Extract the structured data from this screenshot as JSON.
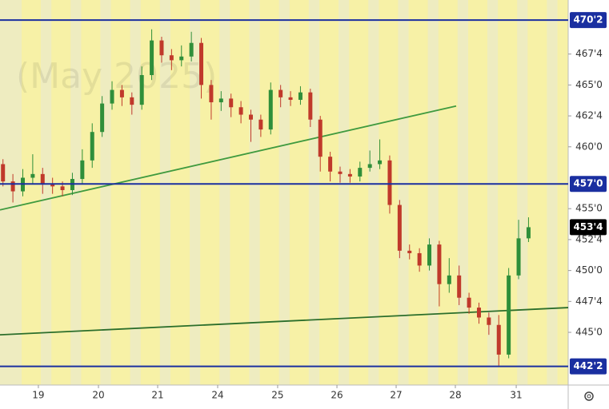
{
  "chart_data": {
    "type": "candlestick",
    "watermark": "(May 2025)",
    "x": [
      0,
      1,
      2,
      3,
      4,
      5,
      6,
      7,
      8,
      9,
      10,
      11,
      12,
      13,
      14,
      15,
      16,
      17,
      18,
      19,
      20,
      21,
      22,
      23,
      24,
      25,
      26,
      27,
      28,
      29,
      30,
      31,
      32,
      33,
      34,
      35,
      36,
      37,
      38,
      39,
      40,
      41,
      42,
      43,
      44,
      45,
      46,
      47,
      48,
      49,
      50,
      51,
      52,
      53
    ],
    "open": [
      458.6,
      457.2,
      456.4,
      457.5,
      457.8,
      457.0,
      456.8,
      456.5,
      457.4,
      458.9,
      461.2,
      463.5,
      464.6,
      464.0,
      463.4,
      465.8,
      468.6,
      467.4,
      467.0,
      467.3,
      468.4,
      465.0,
      463.6,
      463.9,
      463.2,
      462.6,
      462.2,
      461.4,
      464.6,
      464.0,
      463.8,
      464.4,
      462.2,
      459.2,
      458.0,
      457.8,
      457.6,
      458.3,
      458.6,
      458.9,
      455.3,
      451.6,
      451.4,
      450.4,
      452.1,
      448.9,
      449.6,
      447.8,
      447.0,
      446.2,
      445.6,
      443.2,
      449.6,
      452.6
    ],
    "high": [
      459.0,
      457.8,
      458.2,
      459.4,
      458.3,
      457.5,
      457.2,
      457.9,
      459.8,
      461.9,
      464.1,
      465.3,
      465.0,
      464.4,
      466.5,
      469.5,
      468.9,
      467.9,
      468.2,
      469.3,
      468.8,
      465.4,
      464.5,
      464.3,
      463.7,
      463.0,
      462.6,
      465.2,
      465.0,
      464.5,
      464.9,
      464.7,
      462.5,
      459.6,
      458.4,
      458.2,
      458.8,
      459.7,
      460.6,
      459.3,
      455.7,
      452.1,
      451.8,
      452.6,
      452.4,
      451.0,
      450.4,
      448.2,
      447.4,
      446.6,
      446.4,
      450.2,
      454.1,
      454.3
    ],
    "low": [
      456.8,
      455.5,
      456.0,
      457.0,
      456.2,
      456.2,
      456.0,
      456.1,
      457.0,
      458.3,
      460.8,
      463.0,
      463.3,
      462.6,
      463.0,
      465.4,
      466.8,
      466.2,
      466.5,
      466.9,
      463.9,
      462.2,
      462.9,
      462.4,
      461.9,
      460.4,
      460.8,
      461.0,
      463.2,
      463.3,
      463.4,
      461.6,
      458.0,
      457.2,
      457.1,
      457.1,
      457.2,
      458.0,
      458.2,
      454.6,
      451.0,
      450.9,
      449.9,
      450.0,
      447.1,
      448.2,
      447.2,
      446.5,
      445.7,
      444.8,
      442.3,
      442.9,
      449.3,
      452.3
    ],
    "close": [
      457.2,
      456.4,
      457.5,
      457.8,
      457.0,
      456.8,
      456.5,
      457.4,
      458.9,
      461.2,
      463.5,
      464.6,
      464.0,
      463.4,
      465.8,
      468.6,
      467.4,
      467.0,
      467.3,
      468.4,
      465.0,
      463.6,
      463.9,
      463.2,
      462.6,
      462.2,
      461.4,
      464.6,
      464.0,
      463.8,
      464.4,
      462.2,
      459.2,
      458.0,
      457.8,
      457.6,
      458.3,
      458.6,
      458.9,
      455.3,
      451.6,
      451.4,
      450.4,
      452.1,
      448.9,
      449.6,
      447.8,
      447.0,
      446.2,
      445.6,
      443.2,
      449.6,
      452.6,
      453.5
    ],
    "up_color": "#2f8f3a",
    "down_color": "#c0392b",
    "xlim": [
      -0.3,
      57
    ],
    "xticks": [
      {
        "value": 3.57,
        "label": "19"
      },
      {
        "value": 9.63,
        "label": "20"
      },
      {
        "value": 15.6,
        "label": "21"
      },
      {
        "value": 21.65,
        "label": "24"
      },
      {
        "value": 27.7,
        "label": "25"
      },
      {
        "value": 33.68,
        "label": "26"
      },
      {
        "value": 39.65,
        "label": "27"
      },
      {
        "value": 45.62,
        "label": "28"
      },
      {
        "value": 51.76,
        "label": "31"
      }
    ],
    "ylim": [
      440.74,
      471.87
    ],
    "yticks": [
      {
        "value": 445,
        "label": "445'0"
      },
      {
        "value": 447.5,
        "label": "447'4"
      },
      {
        "value": 450,
        "label": "450'0"
      },
      {
        "value": 452.5,
        "label": "452'4"
      },
      {
        "value": 455,
        "label": "455'0"
      },
      {
        "value": 460,
        "label": "460'0"
      },
      {
        "value": 462.5,
        "label": "462'4"
      },
      {
        "value": 465,
        "label": "465'0"
      },
      {
        "value": 467.5,
        "label": "467'4"
      }
    ],
    "levels": [
      {
        "value": 470.25,
        "label": "470'2"
      },
      {
        "value": 457,
        "label": "457'0"
      },
      {
        "value": 442.25,
        "label": "442'2"
      }
    ],
    "level_color": "#1a2fa0",
    "last_price": {
      "value": 453.5,
      "label": "453'4"
    },
    "last_price_color": "#3a9a48",
    "trendlines": [
      {
        "x": [
          -0.3,
          45.7
        ],
        "y": [
          454.9,
          463.3
        ],
        "color": "#3f9a3f"
      },
      {
        "x": [
          -0.3,
          57
        ],
        "y": [
          444.8,
          447.0
        ],
        "color": "#2b6e2b"
      }
    ]
  }
}
